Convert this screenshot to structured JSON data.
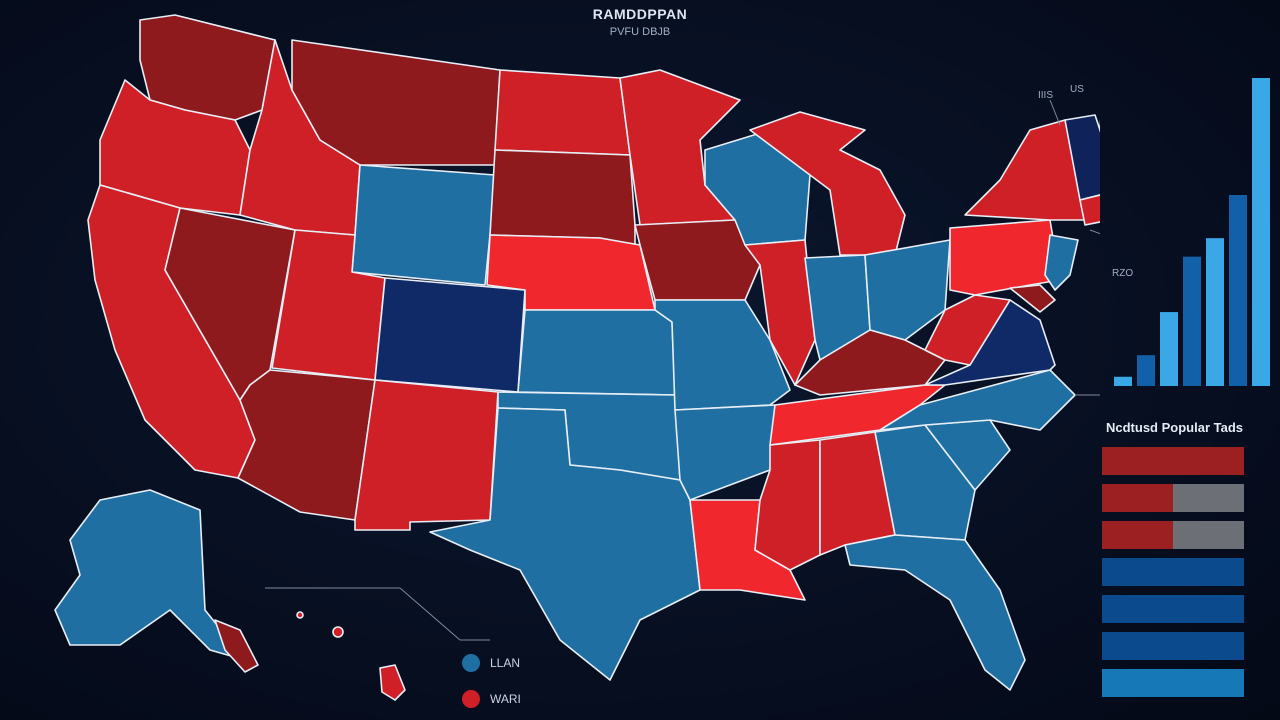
{
  "header": {
    "title": "RAMDDPPAN",
    "subtitle": "PVFU DBJB"
  },
  "labels": {
    "top_left": "IIIS",
    "top_right": "US",
    "right": "RZO"
  },
  "colors": {
    "background": "#060d1e",
    "red": "#cf2027",
    "dark_red": "#8e1a1d",
    "bright_red": "#f0282e",
    "blue": "#1f6fa3",
    "dark_blue": "#0f2a66",
    "navy": "#10225a",
    "border": "#e8eef6"
  },
  "states": [
    {
      "name": "Washington",
      "party": "dark_red"
    },
    {
      "name": "Oregon",
      "party": "red"
    },
    {
      "name": "California",
      "party": "red"
    },
    {
      "name": "Nevada",
      "party": "dark_red"
    },
    {
      "name": "Idaho",
      "party": "red"
    },
    {
      "name": "Montana",
      "party": "dark_red"
    },
    {
      "name": "Wyoming",
      "party": "blue"
    },
    {
      "name": "Utah",
      "party": "red"
    },
    {
      "name": "Arizona",
      "party": "dark_red"
    },
    {
      "name": "Colorado",
      "party": "dark_blue"
    },
    {
      "name": "New Mexico",
      "party": "red"
    },
    {
      "name": "North Dakota",
      "party": "red"
    },
    {
      "name": "South Dakota",
      "party": "dark_red"
    },
    {
      "name": "Nebraska",
      "party": "bright_red"
    },
    {
      "name": "Kansas",
      "party": "blue"
    },
    {
      "name": "Oklahoma",
      "party": "blue"
    },
    {
      "name": "Texas",
      "party": "blue"
    },
    {
      "name": "Minnesota",
      "party": "red"
    },
    {
      "name": "Iowa",
      "party": "dark_red"
    },
    {
      "name": "Missouri",
      "party": "blue"
    },
    {
      "name": "Arkansas",
      "party": "blue"
    },
    {
      "name": "Louisiana",
      "party": "bright_red"
    },
    {
      "name": "Wisconsin",
      "party": "blue"
    },
    {
      "name": "Illinois",
      "party": "red"
    },
    {
      "name": "Michigan",
      "party": "red"
    },
    {
      "name": "Indiana",
      "party": "blue"
    },
    {
      "name": "Ohio",
      "party": "blue"
    },
    {
      "name": "Kentucky",
      "party": "dark_red"
    },
    {
      "name": "Tennessee",
      "party": "bright_red"
    },
    {
      "name": "Mississippi",
      "party": "red"
    },
    {
      "name": "Alabama",
      "party": "red"
    },
    {
      "name": "Georgia",
      "party": "blue"
    },
    {
      "name": "Florida",
      "party": "blue"
    },
    {
      "name": "South Carolina",
      "party": "blue"
    },
    {
      "name": "North Carolina",
      "party": "blue"
    },
    {
      "name": "Virginia",
      "party": "dark_blue"
    },
    {
      "name": "West Virginia",
      "party": "red"
    },
    {
      "name": "Pennsylvania",
      "party": "bright_red"
    },
    {
      "name": "New York",
      "party": "red"
    },
    {
      "name": "New Jersey",
      "party": "blue"
    },
    {
      "name": "New England South",
      "party": "navy"
    },
    {
      "name": "Maine",
      "party": "bright_red"
    },
    {
      "name": "Alaska",
      "party": "blue"
    },
    {
      "name": "Hawaii",
      "party": "red"
    }
  ],
  "legend": [
    {
      "label": "LLAN",
      "color": "#1f6fa3"
    },
    {
      "label": "WARI",
      "color": "#cf2027"
    }
  ],
  "bar_chart": {
    "values": [
      3,
      10,
      24,
      42,
      48,
      62,
      100
    ],
    "highlight_values": [
      0,
      0,
      0,
      0,
      0,
      30,
      0
    ],
    "color_light": "#3aa8e6",
    "color_dark": "#1261a8"
  },
  "popular_votes": {
    "title": "Ncdtusd Popular Tads",
    "rows": [
      {
        "fill": 1.0,
        "color": "#9c1f22"
      },
      {
        "fill": 0.5,
        "color": "#9c1f22"
      },
      {
        "fill": 0.5,
        "color": "#9c1f22"
      },
      {
        "fill": 1.0,
        "color": "#0b4a8c"
      },
      {
        "fill": 1.0,
        "color": "#0b4a8c"
      },
      {
        "fill": 1.0,
        "color": "#0b4a8c"
      },
      {
        "fill": 1.0,
        "color": "#1778b8"
      }
    ]
  }
}
